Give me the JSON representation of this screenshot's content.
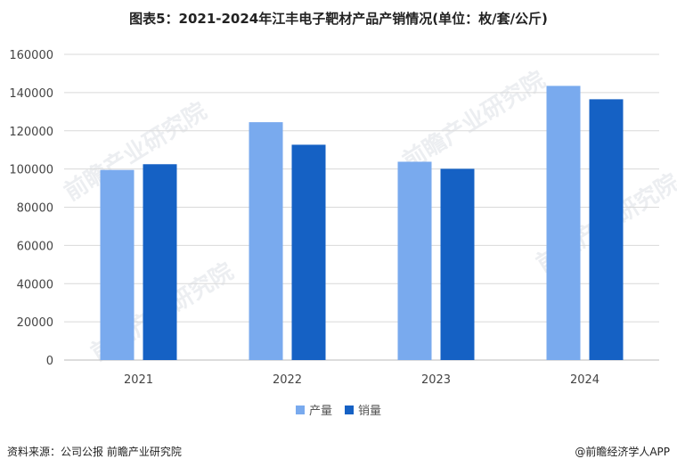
{
  "title": "图表5：2021-2024年江丰电子靶材产品产销情况(单位：枚/套/公斤)",
  "chart_data": {
    "type": "bar",
    "categories": [
      "2021",
      "2022",
      "2023",
      "2024"
    ],
    "series": [
      {
        "name": "产量",
        "color": "#79aaee",
        "values": [
          99500,
          124500,
          103800,
          143500
        ]
      },
      {
        "name": "销量",
        "color": "#1561c4",
        "values": [
          102500,
          112700,
          100100,
          136500
        ]
      }
    ],
    "y_ticks": [
      "0",
      "20000",
      "40000",
      "60000",
      "80000",
      "100000",
      "120000",
      "140000",
      "160000"
    ],
    "ylim": [
      0,
      160000
    ],
    "grid": true,
    "legend_position": "bottom-center"
  },
  "footer": {
    "source": "资料来源：公司公报 前瞻产业研究院",
    "brand": "@前瞻经济学人APP"
  },
  "watermark": "前瞻产业研究院"
}
